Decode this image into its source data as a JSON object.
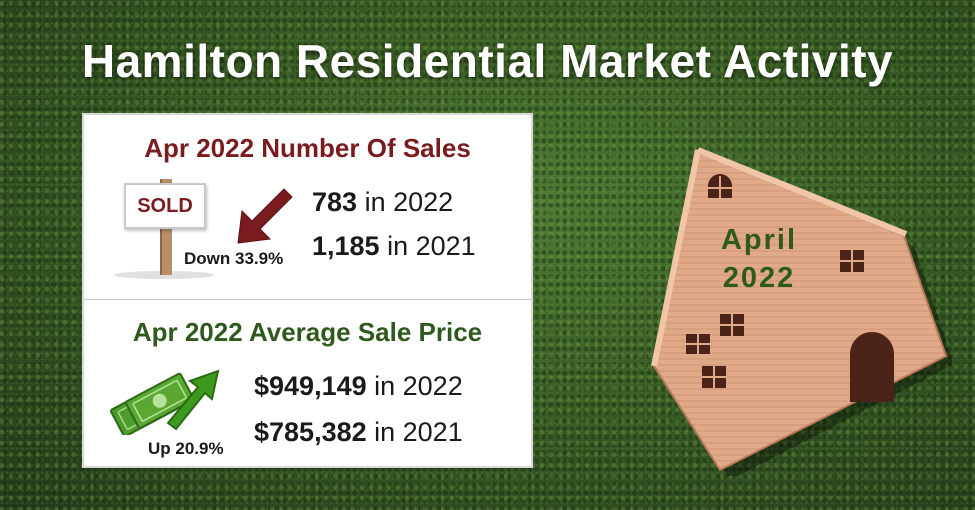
{
  "title": "Hamilton Residential Market Activity",
  "sales": {
    "heading": "Apr 2022 Number Of Sales",
    "sign_text": "SOLD",
    "change_text": "Down 33.9%",
    "current_value": "783",
    "current_suffix": " in 2022",
    "previous_value": "1,185",
    "previous_suffix": " in 2021",
    "arrow_icon": "arrow-down-left-icon",
    "color": "#7a1b1f"
  },
  "price": {
    "heading": "Apr 2022 Average Sale Price",
    "change_text": "Up 20.9%",
    "current_value": "$949,149",
    "current_suffix": " in 2022",
    "previous_value": "$785,382",
    "previous_suffix": " in 2021",
    "icon": "money-arrow-up-icon",
    "color": "#2f5a1e"
  },
  "house": {
    "month": "April",
    "year": "2022",
    "icon": "house-icon"
  }
}
